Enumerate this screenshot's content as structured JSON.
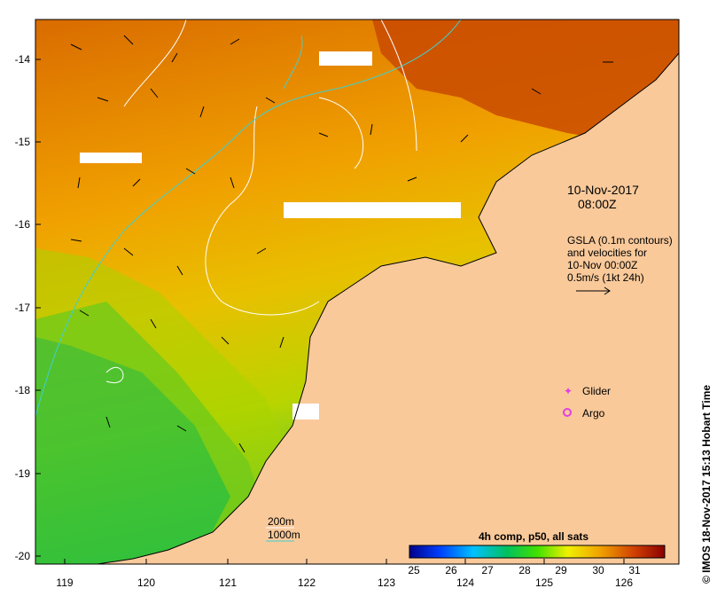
{
  "map": {
    "y_ticks": [
      "-14",
      "-15",
      "-16",
      "-17",
      "-18",
      "-19",
      "-20"
    ],
    "x_ticks": [
      "119",
      "120",
      "121",
      "122",
      "123",
      "124",
      "125",
      "126"
    ],
    "date": "10-Nov-2017",
    "time": "08:00Z",
    "info_lines": [
      "GSLA (0.1m contours)",
      "and velocities for",
      "10-Nov 00:00Z",
      "0.5m/s (1kt 24h)"
    ],
    "legend": {
      "glider": "Glider",
      "argo": "Argo"
    },
    "depth_legend": {
      "d200": "200m",
      "d1000": "1000m"
    },
    "colorbar": {
      "title": "4h comp, p50, all sats",
      "ticks": [
        "25",
        "26",
        "27",
        "28",
        "29",
        "30",
        "31"
      ]
    },
    "stamp": "© IMOS 18-Nov-2017 15:13 Hobart Time",
    "colors": {
      "land": "#f9c99a",
      "warm": "#c94a00",
      "mid": "#f0a000",
      "cool": "#c7d400",
      "cold": "#2fbf3a",
      "contour_200": "#ffffff",
      "contour_1000": "#40d0d0",
      "glider": "#e040e0"
    }
  }
}
